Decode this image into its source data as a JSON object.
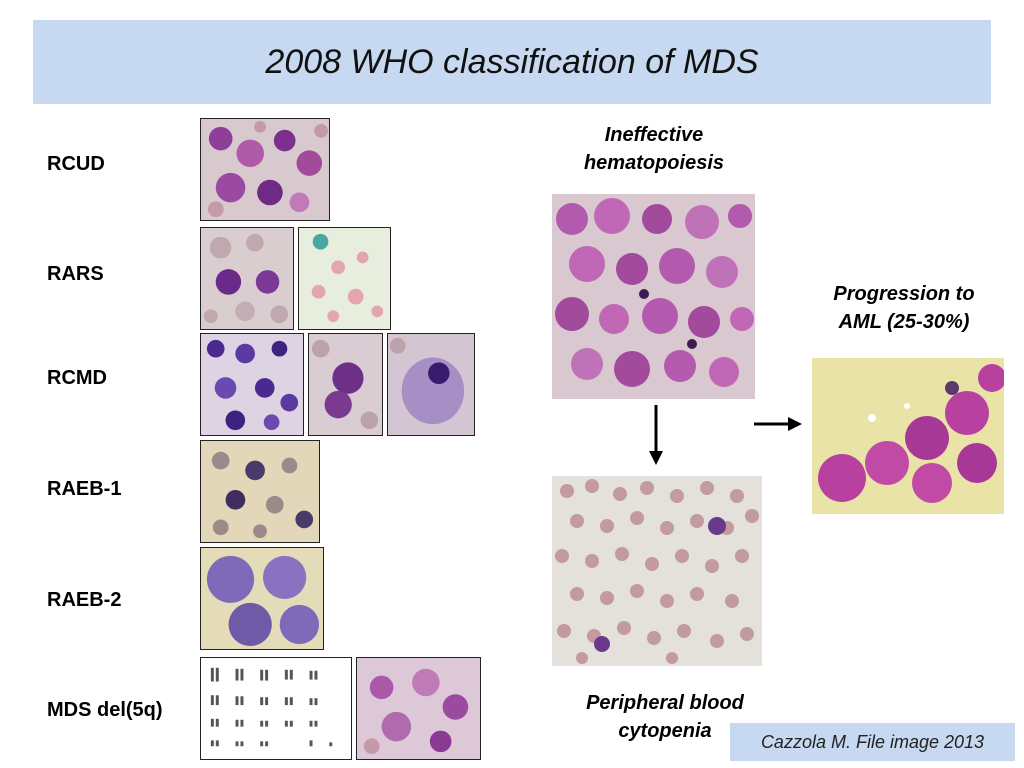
{
  "slide": {
    "title": "2008 WHO classification of MDS",
    "categories": [
      {
        "label": "RCUD",
        "images": [
          "bone-marrow-smear"
        ]
      },
      {
        "label": "RARS",
        "images": [
          "bone-marrow-smear",
          "iron-stain-smear"
        ]
      },
      {
        "label": "RCMD",
        "images": [
          "bone-marrow-smear",
          "dysplastic-cell-closeup",
          "megakaryocyte-closeup"
        ]
      },
      {
        "label": "RAEB-1",
        "images": [
          "bone-marrow-smear"
        ]
      },
      {
        "label": "RAEB-2",
        "images": [
          "blast-cells-closeup"
        ]
      },
      {
        "label": "MDS del(5q)",
        "images": [
          "karyotype",
          "bone-marrow-smear"
        ]
      }
    ],
    "ineffective_caption": "Ineffective\nhematopoiesis",
    "peripheral_caption": "Peripheral blood\ncytopenia",
    "progression_caption": "Progression to\nAML (25-30%)",
    "credit": "Cazzola M. File image 2013"
  }
}
